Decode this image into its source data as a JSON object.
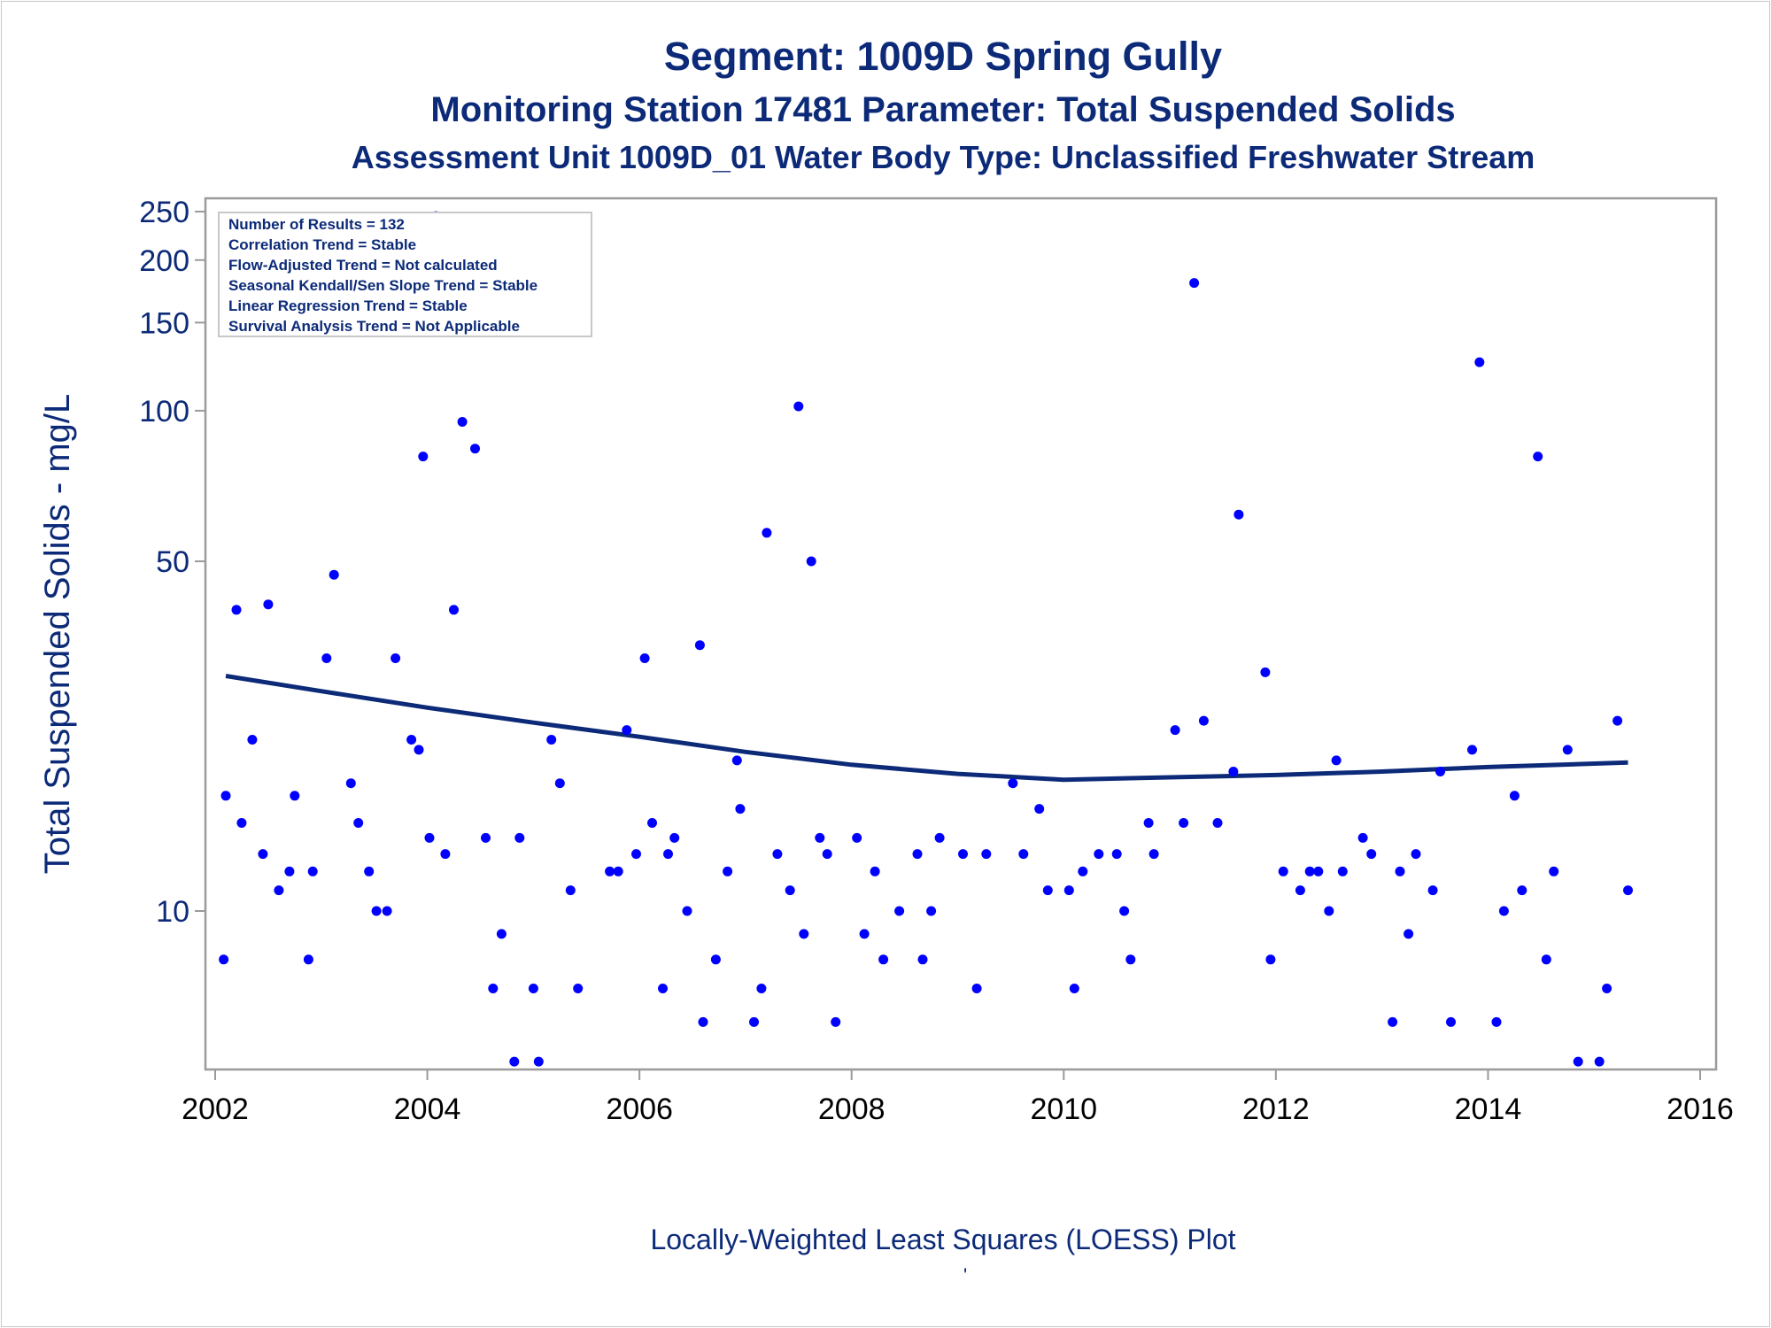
{
  "titles": {
    "line1": "Segment: 1009D  Spring Gully",
    "line2": "Monitoring Station 17481 Parameter: Total Suspended Solids",
    "line3": "Assessment Unit 1009D_01   Water Body Type: Unclassified Freshwater Stream"
  },
  "footnote": "Locally-Weighted Least Squares (LOESS) Plot",
  "footnote_mark": "'",
  "stats_box": [
    "Number of Results = 132",
    "Correlation Trend = Stable",
    "Flow-Adjusted Trend = Not calculated",
    "Seasonal Kendall/Sen Slope Trend = Stable",
    "Linear Regression Trend = Stable",
    "Survival Analysis Trend = Not Applicable"
  ],
  "colors": {
    "title": "#0c2a78",
    "points": "#0000ff",
    "loess_line": "#0c2a78",
    "axis": "#9a9a9a"
  },
  "chart_data": {
    "type": "scatter",
    "title": "Segment: 1009D  Spring Gully",
    "xlabel": "",
    "ylabel": "Total Suspended Solids - mg/L",
    "y_scale": "log",
    "xlim": [
      2001.95,
      2016.05
    ],
    "ylim": [
      5,
      260
    ],
    "x_ticks": [
      2002,
      2004,
      2006,
      2008,
      2010,
      2012,
      2014,
      2016
    ],
    "y_ticks": [
      10,
      50,
      100,
      150,
      200,
      250
    ],
    "grid": false,
    "series": [
      {
        "type": "scatter",
        "points": [
          [
            2002.08,
            8
          ],
          [
            2002.1,
            17
          ],
          [
            2002.2,
            40
          ],
          [
            2002.25,
            15
          ],
          [
            2002.35,
            22
          ],
          [
            2002.45,
            13
          ],
          [
            2002.5,
            41
          ],
          [
            2002.6,
            11
          ],
          [
            2002.7,
            12
          ],
          [
            2002.75,
            17
          ],
          [
            2002.88,
            8
          ],
          [
            2002.92,
            12
          ],
          [
            2003.05,
            32
          ],
          [
            2003.12,
            47
          ],
          [
            2003.28,
            18
          ],
          [
            2003.35,
            15
          ],
          [
            2003.45,
            12
          ],
          [
            2003.52,
            10
          ],
          [
            2003.62,
            10
          ],
          [
            2003.7,
            32
          ],
          [
            2003.85,
            22
          ],
          [
            2003.92,
            21
          ],
          [
            2003.96,
            81
          ],
          [
            2004.02,
            14
          ],
          [
            2004.08,
            245
          ],
          [
            2004.17,
            13
          ],
          [
            2004.25,
            40
          ],
          [
            2004.33,
            95
          ],
          [
            2004.45,
            84
          ],
          [
            2004.55,
            14
          ],
          [
            2004.62,
            7
          ],
          [
            2004.7,
            9
          ],
          [
            2004.82,
            5
          ],
          [
            2004.87,
            14
          ],
          [
            2005.0,
            7
          ],
          [
            2005.05,
            5
          ],
          [
            2005.17,
            22
          ],
          [
            2005.25,
            18
          ],
          [
            2005.35,
            11
          ],
          [
            2005.42,
            7
          ],
          [
            2005.72,
            12
          ],
          [
            2005.8,
            12
          ],
          [
            2005.88,
            23
          ],
          [
            2005.97,
            13
          ],
          [
            2006.05,
            32
          ],
          [
            2006.12,
            15
          ],
          [
            2006.22,
            7
          ],
          [
            2006.27,
            13
          ],
          [
            2006.33,
            14
          ],
          [
            2006.45,
            10
          ],
          [
            2006.57,
            34
          ],
          [
            2006.6,
            6
          ],
          [
            2006.72,
            8
          ],
          [
            2006.83,
            12
          ],
          [
            2006.92,
            20
          ],
          [
            2006.95,
            16
          ],
          [
            2007.08,
            6
          ],
          [
            2007.15,
            7
          ],
          [
            2007.2,
            57
          ],
          [
            2007.3,
            13
          ],
          [
            2007.42,
            11
          ],
          [
            2007.5,
            102
          ],
          [
            2007.55,
            9
          ],
          [
            2007.62,
            50
          ],
          [
            2007.7,
            14
          ],
          [
            2007.77,
            13
          ],
          [
            2007.85,
            6
          ],
          [
            2008.05,
            14
          ],
          [
            2008.12,
            9
          ],
          [
            2008.22,
            12
          ],
          [
            2008.3,
            8
          ],
          [
            2008.45,
            10
          ],
          [
            2008.62,
            13
          ],
          [
            2008.67,
            8
          ],
          [
            2008.75,
            10
          ],
          [
            2008.83,
            14
          ],
          [
            2009.05,
            13
          ],
          [
            2009.18,
            7
          ],
          [
            2009.27,
            13
          ],
          [
            2009.52,
            18
          ],
          [
            2009.62,
            13
          ],
          [
            2009.77,
            16
          ],
          [
            2009.85,
            11
          ],
          [
            2010.05,
            11
          ],
          [
            2010.1,
            7
          ],
          [
            2010.18,
            12
          ],
          [
            2010.33,
            13
          ],
          [
            2010.5,
            13
          ],
          [
            2010.57,
            10
          ],
          [
            2010.63,
            8
          ],
          [
            2010.8,
            15
          ],
          [
            2010.85,
            13
          ],
          [
            2011.05,
            23
          ],
          [
            2011.13,
            15
          ],
          [
            2011.23,
            180
          ],
          [
            2011.32,
            24
          ],
          [
            2011.45,
            15
          ],
          [
            2011.6,
            19
          ],
          [
            2011.65,
            62
          ],
          [
            2011.9,
            30
          ],
          [
            2011.95,
            8
          ],
          [
            2012.07,
            12
          ],
          [
            2012.23,
            11
          ],
          [
            2012.32,
            12
          ],
          [
            2012.4,
            12
          ],
          [
            2012.5,
            10
          ],
          [
            2012.57,
            20
          ],
          [
            2012.63,
            12
          ],
          [
            2012.82,
            14
          ],
          [
            2012.9,
            13
          ],
          [
            2013.1,
            6
          ],
          [
            2013.17,
            12
          ],
          [
            2013.25,
            9
          ],
          [
            2013.32,
            13
          ],
          [
            2013.48,
            11
          ],
          [
            2013.55,
            19
          ],
          [
            2013.65,
            6
          ],
          [
            2013.85,
            21
          ],
          [
            2013.92,
            125
          ],
          [
            2014.08,
            6
          ],
          [
            2014.15,
            10
          ],
          [
            2014.25,
            17
          ],
          [
            2014.32,
            11
          ],
          [
            2014.47,
            81
          ],
          [
            2014.55,
            8
          ],
          [
            2014.62,
            12
          ],
          [
            2014.75,
            21
          ],
          [
            2014.85,
            5
          ],
          [
            2015.05,
            5
          ],
          [
            2015.12,
            7
          ],
          [
            2015.22,
            24
          ],
          [
            2015.32,
            11
          ]
        ]
      },
      {
        "type": "line",
        "x": [
          2002.1,
          2003.0,
          2004.0,
          2005.0,
          2006.0,
          2007.0,
          2008.0,
          2009.0,
          2010.0,
          2011.0,
          2012.0,
          2013.0,
          2014.0,
          2015.32
        ],
        "y": [
          29.5,
          27.5,
          25.5,
          23.8,
          22.3,
          20.8,
          19.6,
          18.8,
          18.3,
          18.5,
          18.7,
          19.0,
          19.4,
          19.8
        ]
      }
    ]
  }
}
